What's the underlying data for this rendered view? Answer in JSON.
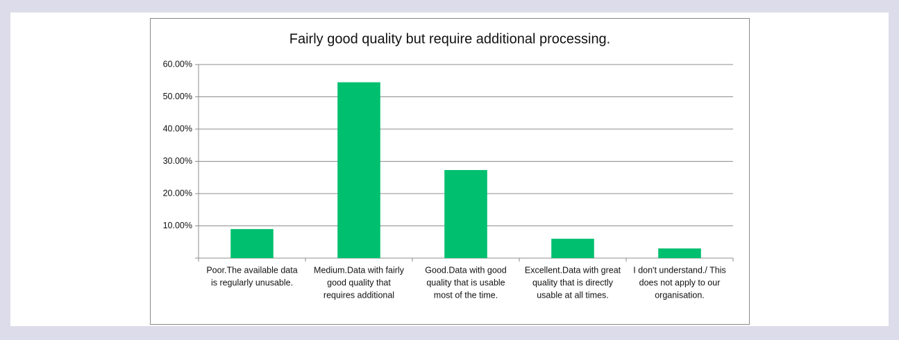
{
  "chart_data": {
    "type": "bar",
    "title": "Fairly good quality but require additional processing.",
    "categories": [
      [
        "Poor.The available data",
        "is regularly unusable."
      ],
      [
        "Medium.Data with fairly",
        "good quality that",
        "requires additional"
      ],
      [
        "Good.Data with good",
        "quality that is usable",
        "most of the time."
      ],
      [
        "Excellent.Data with great",
        "quality that is directly",
        "usable at all times."
      ],
      [
        "I don't understand./ This",
        "does not apply to our",
        "organisation."
      ]
    ],
    "values": [
      9.0,
      54.5,
      27.3,
      6.0,
      3.0
    ],
    "color": "#00bf6f",
    "ylim": [
      0,
      60
    ],
    "yticks": [
      {
        "value": 10,
        "label": "10.00%"
      },
      {
        "value": 20,
        "label": "20.00%"
      },
      {
        "value": 30,
        "label": "30.00%"
      },
      {
        "value": 40,
        "label": "40.00%"
      },
      {
        "value": 50,
        "label": "50.00%"
      },
      {
        "value": 60,
        "label": "60.00%"
      }
    ],
    "grid": true
  }
}
